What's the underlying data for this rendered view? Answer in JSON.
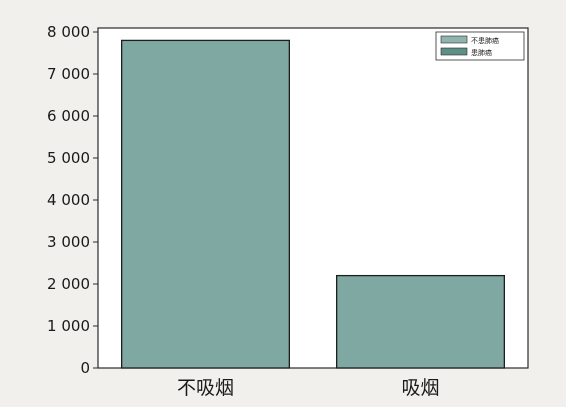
{
  "chart_data": {
    "type": "bar",
    "categories": [
      "不吸烟",
      "吸烟"
    ],
    "values": [
      7800,
      2200
    ],
    "title": "",
    "xlabel": "",
    "ylabel": "",
    "ylim": [
      0,
      8000
    ],
    "yticks": [
      0,
      1000,
      2000,
      3000,
      4000,
      5000,
      6000,
      7000,
      8000
    ],
    "ytick_labels": [
      "0",
      "1 000",
      "2 000",
      "3 000",
      "4 000",
      "5 000",
      "6 000",
      "7 000",
      "8 000"
    ],
    "legend": {
      "placement": "top-right",
      "entries": [
        "不患肺癌",
        "患肺癌"
      ]
    },
    "grid": false,
    "colors": {
      "bar_fill": "#7ea8a1",
      "bar_edge": "#1e1e1e",
      "legend_swatch_1": "#8fb3ad",
      "legend_swatch_2": "#5e8f86"
    }
  }
}
